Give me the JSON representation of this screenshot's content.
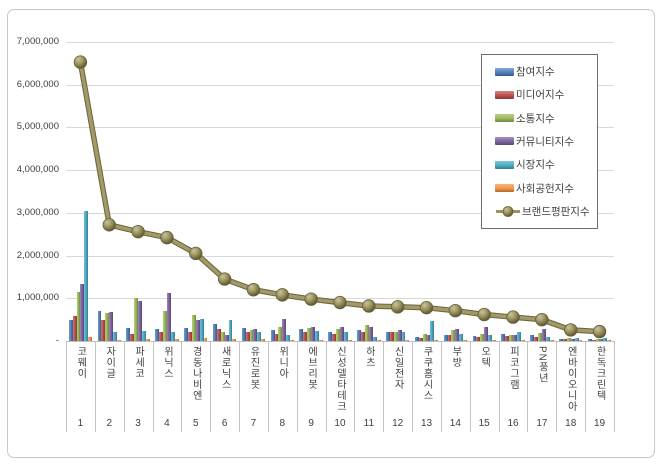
{
  "frame": {
    "background": "#ffffff",
    "border_color": "#c9c9c9"
  },
  "text_color": "#404040",
  "gridline_color": "#d9d9d9",
  "axis_color": "#bfbfbf",
  "chart_data": {
    "type": "bar",
    "subtype": "clustered-bar-with-line-overlay",
    "title": "",
    "xlabel": "",
    "ylabel": "",
    "ylim": [
      0,
      7000000
    ],
    "grid": true,
    "legend_position": "inside-top-right",
    "categories": [
      "코웨이",
      "자이글",
      "파세코",
      "위닉스",
      "경동나비엔",
      "새로닉스",
      "유진로봇",
      "위니아",
      "에브리봇",
      "신성델타테크",
      "하츠",
      "신일전자",
      "쿠쿠홈시스",
      "부방",
      "오텍",
      "피코그램",
      "PN풍년",
      "엔바이오니아",
      "한독크린텍"
    ],
    "category_ranks": [
      "1",
      "2",
      "3",
      "4",
      "5",
      "6",
      "7",
      "8",
      "9",
      "10",
      "11",
      "12",
      "13",
      "14",
      "15",
      "16",
      "17",
      "18",
      "19"
    ],
    "y_axis": {
      "min": 0,
      "max": 7000000,
      "tick_interval": 1000000,
      "tick_labels_top_to_bottom": [
        "7,000,000",
        "6,000,000",
        "5,000,000",
        "4,000,000",
        "3,000,000",
        "2,000,000",
        "1,000,000",
        "-"
      ]
    },
    "series": [
      {
        "name": "참여지수",
        "type": "bar",
        "color": "#4F81BD",
        "values": [
          500000,
          700000,
          300000,
          280000,
          300000,
          400000,
          310000,
          250000,
          290000,
          210000,
          250000,
          220000,
          90000,
          150000,
          120000,
          170000,
          130000,
          50000,
          40000
        ]
      },
      {
        "name": "미디어지수",
        "type": "bar",
        "color": "#C0504D",
        "values": [
          580000,
          500000,
          160000,
          200000,
          200000,
          270000,
          200000,
          170000,
          210000,
          170000,
          200000,
          200000,
          70000,
          130000,
          100000,
          120000,
          90000,
          40000,
          30000
        ]
      },
      {
        "name": "소통지수",
        "type": "bar",
        "color": "#9BBB59",
        "values": [
          1150000,
          660000,
          1000000,
          700000,
          600000,
          210000,
          250000,
          330000,
          310000,
          290000,
          370000,
          210000,
          170000,
          250000,
          170000,
          150000,
          190000,
          60000,
          50000
        ]
      },
      {
        "name": "커뮤니티지수",
        "type": "bar",
        "color": "#8064A2",
        "values": [
          1330000,
          680000,
          930000,
          1120000,
          490000,
          150000,
          290000,
          520000,
          330000,
          330000,
          330000,
          250000,
          130000,
          290000,
          330000,
          150000,
          270000,
          50000,
          40000
        ]
      },
      {
        "name": "시장지수",
        "type": "bar",
        "color": "#4BACC6",
        "values": [
          3050000,
          200000,
          240000,
          200000,
          520000,
          500000,
          210000,
          130000,
          230000,
          200000,
          100000,
          200000,
          480000,
          170000,
          150000,
          200000,
          90000,
          80000,
          70000
        ]
      },
      {
        "name": "사회공헌지수",
        "type": "bar",
        "color": "#F79646",
        "values": [
          90000,
          30000,
          40000,
          40000,
          70000,
          50000,
          40000,
          30000,
          30000,
          30000,
          30000,
          30000,
          30000,
          30000,
          30000,
          30000,
          30000,
          20000,
          20000
        ]
      },
      {
        "name": "브랜드평판지수",
        "type": "line",
        "color": "#9A925A",
        "values": [
          6530000,
          2720000,
          2560000,
          2420000,
          2050000,
          1450000,
          1200000,
          1080000,
          980000,
          900000,
          820000,
          800000,
          780000,
          710000,
          620000,
          560000,
          500000,
          260000,
          220000
        ]
      }
    ]
  }
}
